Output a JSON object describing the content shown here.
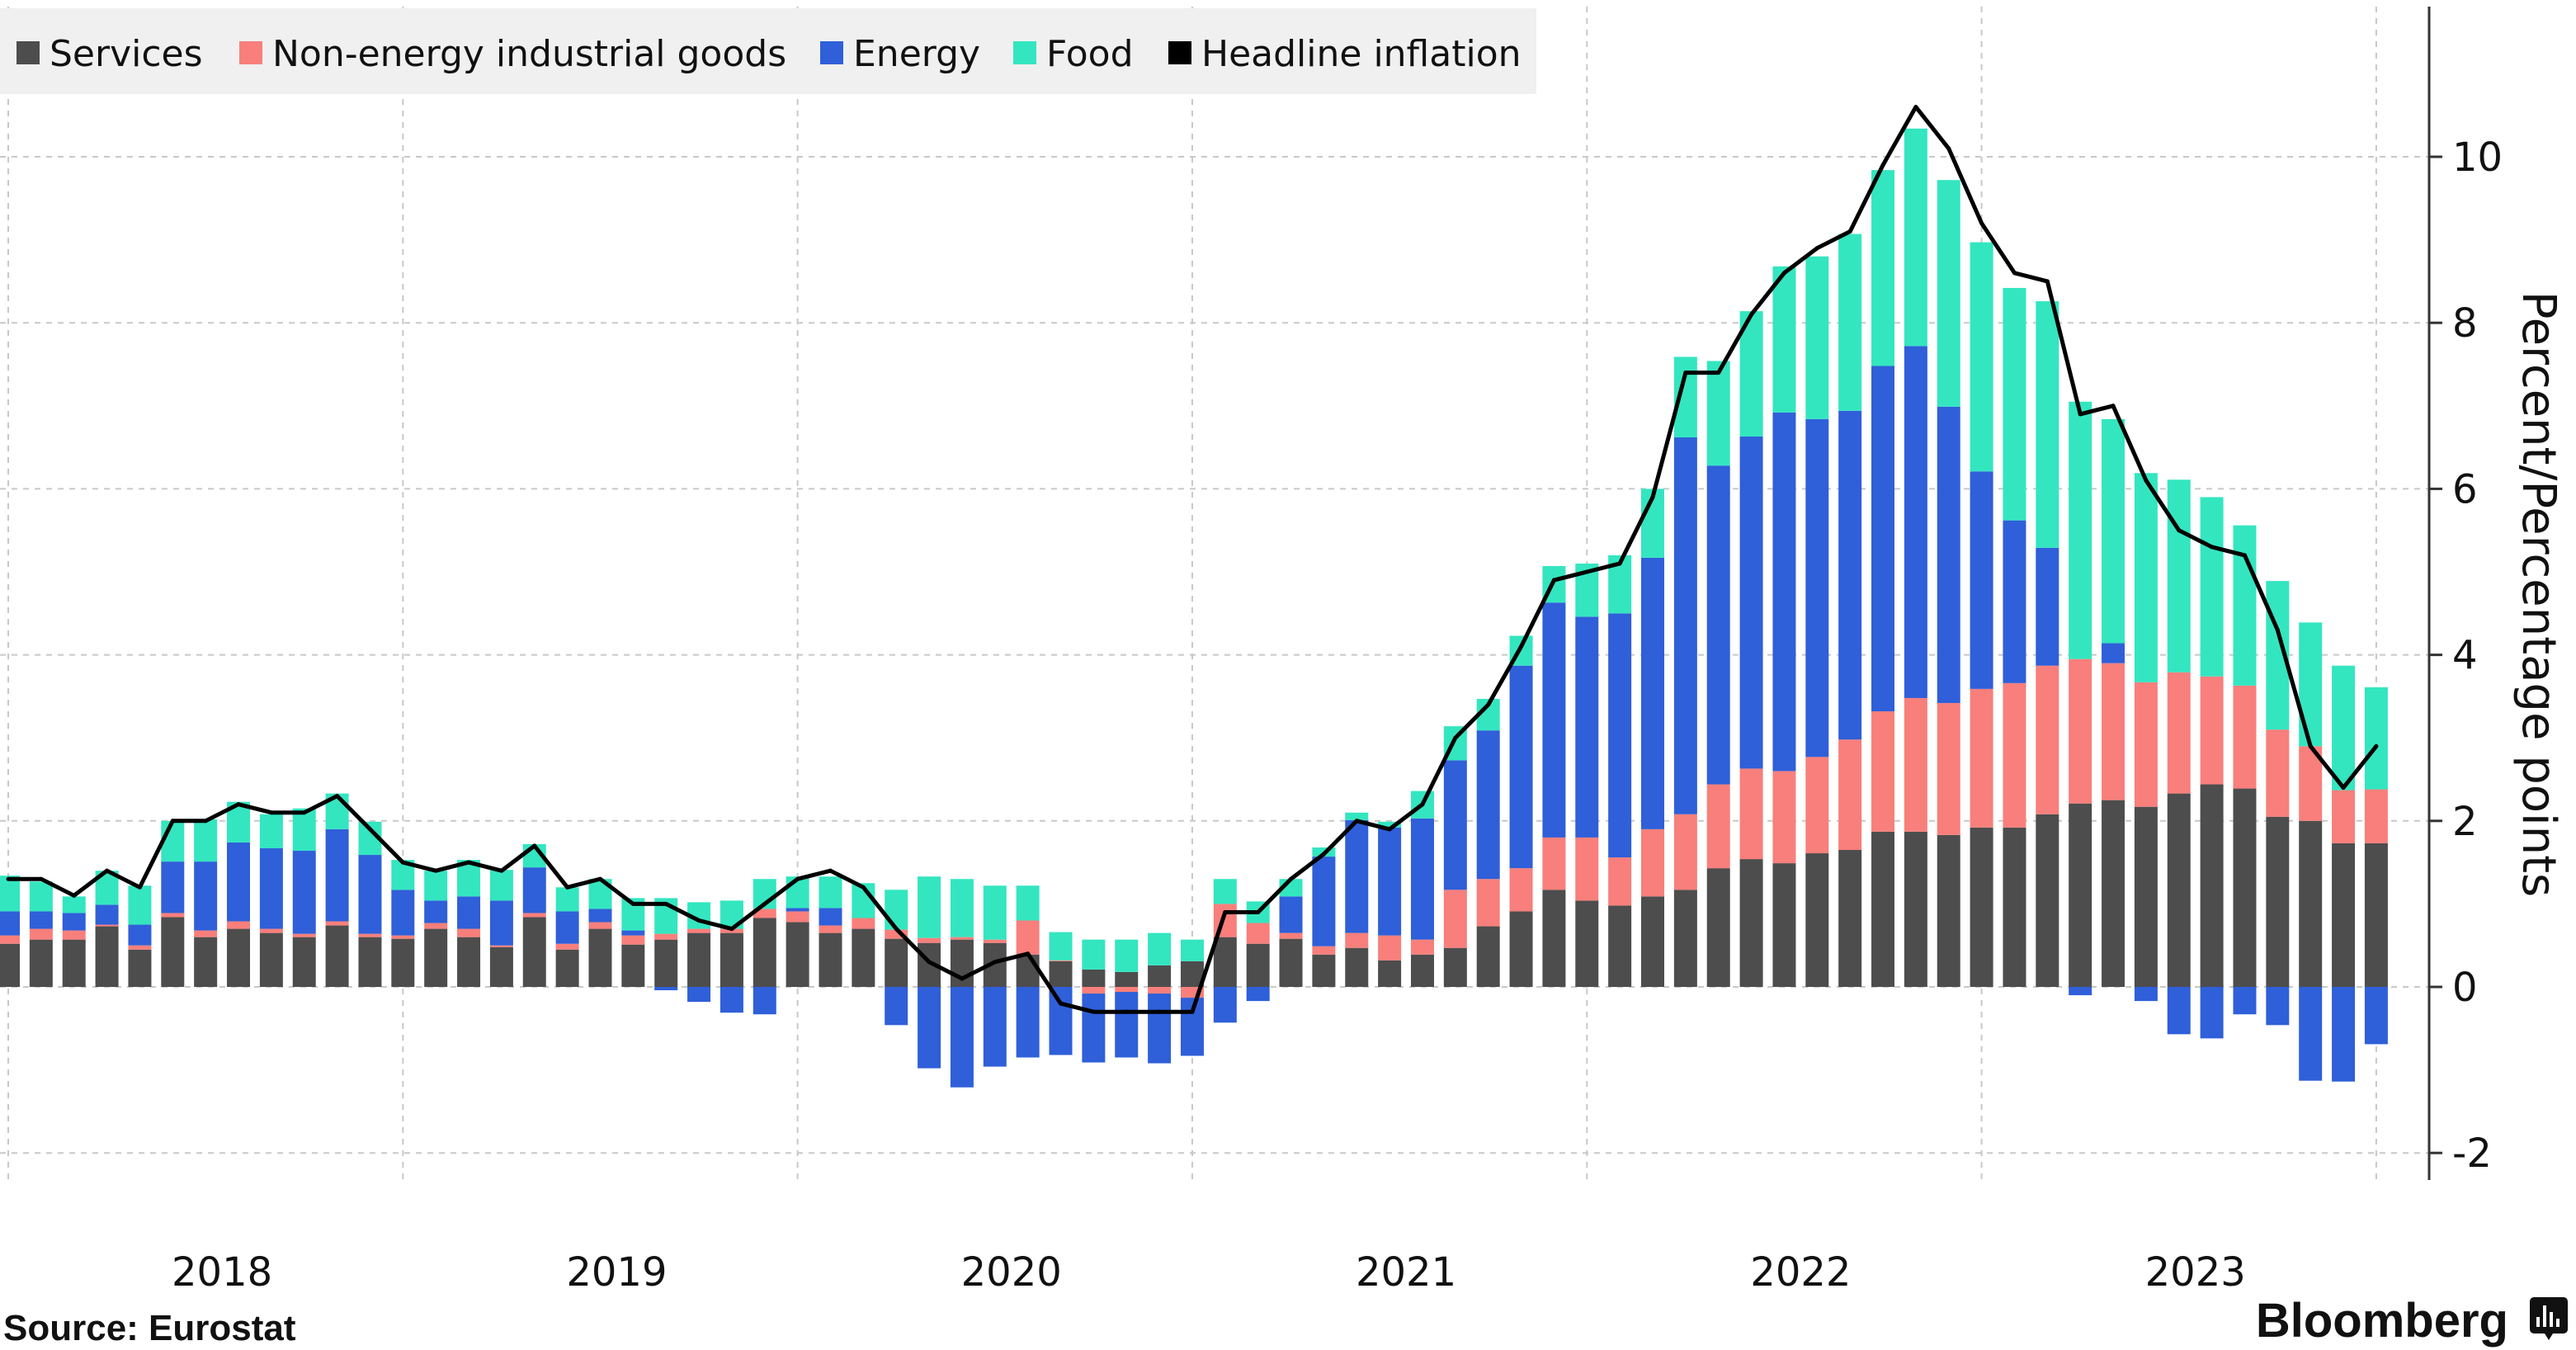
{
  "chart_data": {
    "type": "bar",
    "stacked": true,
    "title": "",
    "xlabel": "",
    "ylabel": "Percent/Percentage points",
    "ylim": [
      -2.3,
      11.8
    ],
    "yticks": [
      -2,
      0,
      2,
      4,
      6,
      8,
      10
    ],
    "year_labels": [
      "2018",
      "2019",
      "2020",
      "2021",
      "2022",
      "2023"
    ],
    "grid": true,
    "legend_position": "top-left",
    "colors": {
      "services": "#4d4d4d",
      "neig": "#f87f7b",
      "energy": "#2f5fd9",
      "food": "#33e6c0",
      "headline": "#000000"
    },
    "x": [
      "2017-12",
      "2018-01",
      "2018-02",
      "2018-03",
      "2018-04",
      "2018-05",
      "2018-06",
      "2018-07",
      "2018-08",
      "2018-09",
      "2018-10",
      "2018-11",
      "2018-12",
      "2019-01",
      "2019-02",
      "2019-03",
      "2019-04",
      "2019-05",
      "2019-06",
      "2019-07",
      "2019-08",
      "2019-09",
      "2019-10",
      "2019-11",
      "2019-12",
      "2020-01",
      "2020-02",
      "2020-03",
      "2020-04",
      "2020-05",
      "2020-06",
      "2020-07",
      "2020-08",
      "2020-09",
      "2020-10",
      "2020-11",
      "2020-12",
      "2021-01",
      "2021-02",
      "2021-03",
      "2021-04",
      "2021-05",
      "2021-06",
      "2021-07",
      "2021-08",
      "2021-09",
      "2021-10",
      "2021-11",
      "2021-12",
      "2022-01",
      "2022-02",
      "2022-03",
      "2022-04",
      "2022-05",
      "2022-06",
      "2022-07",
      "2022-08",
      "2022-09",
      "2022-10",
      "2022-11",
      "2022-12",
      "2023-01",
      "2023-02",
      "2023-03",
      "2023-04",
      "2023-05",
      "2023-06",
      "2023-07",
      "2023-08",
      "2023-09",
      "2023-10",
      "2023-11",
      "2023-12"
    ],
    "series": [
      {
        "key": "services",
        "name": "Services",
        "kind": "bar",
        "values": [
          0.52,
          0.57,
          0.57,
          0.73,
          0.45,
          0.84,
          0.6,
          0.7,
          0.65,
          0.6,
          0.74,
          0.6,
          0.58,
          0.7,
          0.6,
          0.48,
          0.84,
          0.45,
          0.7,
          0.51,
          0.57,
          0.65,
          0.65,
          0.83,
          0.78,
          0.65,
          0.7,
          0.58,
          0.53,
          0.57,
          0.53,
          0.39,
          0.31,
          0.21,
          0.18,
          0.26,
          0.31,
          0.6,
          0.52,
          0.58,
          0.39,
          0.47,
          0.32,
          0.39,
          0.47,
          0.73,
          0.91,
          1.17,
          1.04,
          0.98,
          1.09,
          1.17,
          1.43,
          1.54,
          1.49,
          1.61,
          1.65,
          1.87,
          1.87,
          1.83,
          1.92,
          1.92,
          2.08,
          2.21,
          2.25,
          2.17,
          2.33,
          2.44,
          2.39,
          2.05,
          2.0,
          1.73,
          1.73
        ]
      },
      {
        "key": "neig",
        "name": "Non-energy industrial goods",
        "kind": "bar",
        "values": [
          0.1,
          0.13,
          0.11,
          0.02,
          0.05,
          0.05,
          0.08,
          0.09,
          0.05,
          0.04,
          0.05,
          0.04,
          0.04,
          0.07,
          0.1,
          0.02,
          0.05,
          0.07,
          0.08,
          0.11,
          0.07,
          0.05,
          0.05,
          0.11,
          0.13,
          0.09,
          0.13,
          0.11,
          0.06,
          0.03,
          0.04,
          0.41,
          0.01,
          -0.08,
          -0.06,
          -0.08,
          -0.13,
          0.4,
          0.25,
          0.07,
          0.1,
          0.18,
          0.3,
          0.18,
          0.7,
          0.57,
          0.52,
          0.63,
          0.76,
          0.58,
          0.81,
          0.91,
          1.01,
          1.09,
          1.11,
          1.16,
          1.33,
          1.45,
          1.61,
          1.59,
          1.67,
          1.74,
          1.79,
          1.74,
          1.65,
          1.5,
          1.46,
          1.3,
          1.24,
          1.05,
          0.9,
          0.64,
          0.65
        ]
      },
      {
        "key": "energy",
        "name": "Energy",
        "kind": "bar",
        "values": [
          0.29,
          0.21,
          0.21,
          0.24,
          0.25,
          0.62,
          0.83,
          0.95,
          0.97,
          1.0,
          1.11,
          0.95,
          0.55,
          0.27,
          0.39,
          0.54,
          0.55,
          0.39,
          0.16,
          0.06,
          -0.04,
          -0.18,
          -0.31,
          -0.33,
          0.04,
          0.21,
          0.0,
          -0.46,
          -0.98,
          -1.21,
          -0.96,
          -0.85,
          -0.82,
          -0.83,
          -0.79,
          -0.84,
          -0.7,
          -0.43,
          -0.17,
          0.44,
          1.08,
          1.36,
          1.3,
          1.46,
          1.56,
          1.79,
          2.44,
          2.83,
          2.66,
          2.94,
          3.27,
          4.54,
          3.84,
          4.0,
          4.32,
          4.07,
          3.96,
          4.16,
          4.24,
          3.57,
          2.62,
          1.96,
          1.42,
          -0.1,
          0.24,
          -0.17,
          -0.57,
          -0.62,
          -0.33,
          -0.46,
          -1.13,
          -1.14,
          -0.69
        ]
      },
      {
        "key": "food",
        "name": "Food",
        "kind": "bar",
        "values": [
          0.43,
          0.36,
          0.2,
          0.41,
          0.47,
          0.49,
          0.51,
          0.49,
          0.41,
          0.51,
          0.43,
          0.4,
          0.36,
          0.36,
          0.44,
          0.37,
          0.28,
          0.29,
          0.36,
          0.39,
          0.43,
          0.32,
          0.34,
          0.36,
          0.38,
          0.38,
          0.42,
          0.48,
          0.74,
          0.7,
          0.65,
          0.42,
          0.34,
          0.36,
          0.39,
          0.39,
          0.26,
          0.3,
          0.26,
          0.21,
          0.11,
          0.09,
          0.07,
          0.33,
          0.41,
          0.38,
          0.36,
          0.44,
          0.64,
          0.7,
          0.83,
          0.97,
          1.26,
          1.51,
          1.76,
          1.96,
          2.13,
          2.36,
          2.62,
          2.73,
          2.76,
          2.8,
          2.97,
          3.1,
          2.7,
          2.52,
          2.32,
          2.16,
          1.93,
          1.79,
          1.49,
          1.5,
          1.23
        ]
      },
      {
        "key": "headline",
        "name": "Headline inflation",
        "kind": "line",
        "values": [
          1.3,
          1.3,
          1.1,
          1.4,
          1.2,
          2.0,
          2.0,
          2.2,
          2.1,
          2.1,
          2.3,
          1.9,
          1.5,
          1.4,
          1.5,
          1.4,
          1.7,
          1.2,
          1.3,
          1.0,
          1.0,
          0.8,
          0.7,
          1.0,
          1.3,
          1.4,
          1.2,
          0.7,
          0.3,
          0.1,
          0.3,
          0.4,
          -0.2,
          -0.3,
          -0.3,
          -0.3,
          -0.3,
          0.9,
          0.9,
          1.3,
          1.6,
          2.0,
          1.9,
          2.2,
          3.0,
          3.4,
          4.1,
          4.9,
          5.0,
          5.1,
          5.9,
          7.4,
          7.4,
          8.1,
          8.6,
          8.9,
          9.1,
          9.9,
          10.6,
          10.1,
          9.2,
          8.6,
          8.5,
          6.9,
          7.0,
          6.1,
          5.5,
          5.3,
          5.2,
          4.3,
          2.9,
          2.4,
          2.9
        ]
      }
    ]
  },
  "legend": {
    "items": [
      "Services",
      "Non-energy industrial goods",
      "Energy",
      "Food",
      "Headline inflation"
    ]
  },
  "footer": {
    "source": "Source:  Eurostat",
    "brand": "Bloomberg"
  }
}
